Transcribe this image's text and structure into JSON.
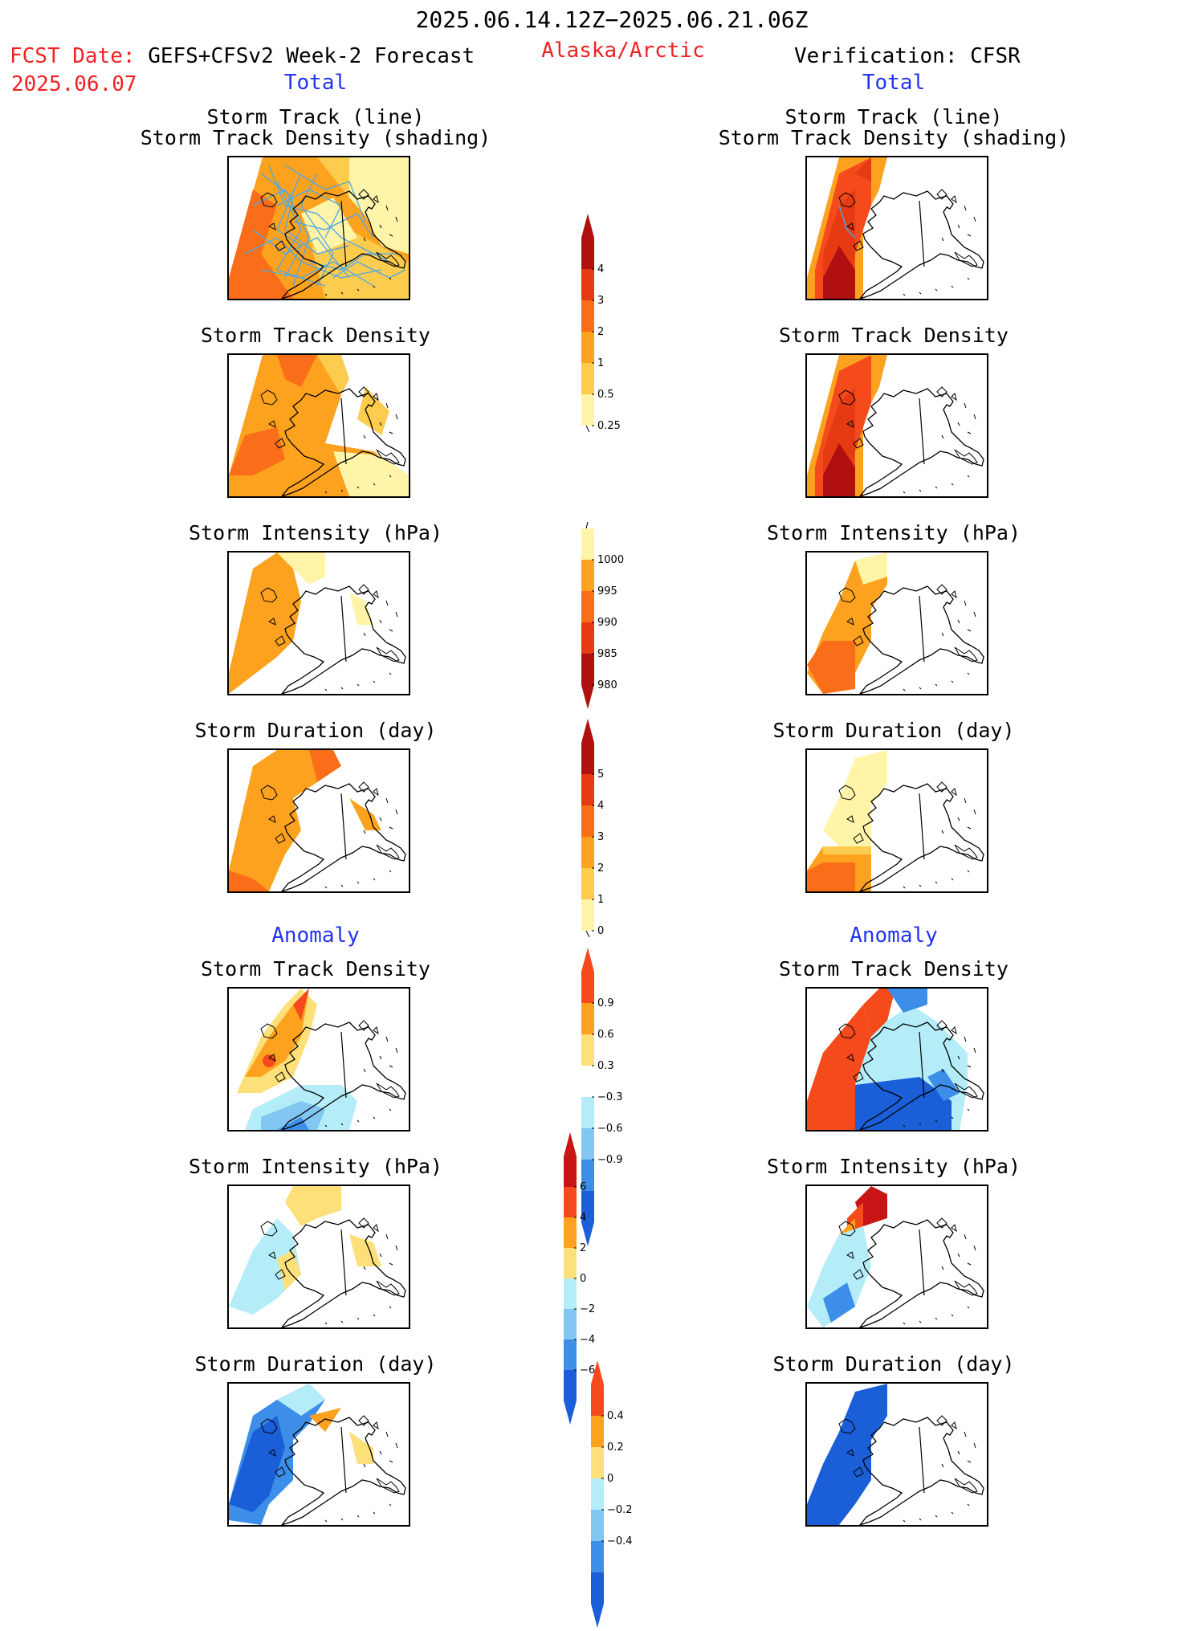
{
  "header": {
    "period": "2025.06.14.12Z−2025.06.21.06Z",
    "fcst_label": "FCST Date:",
    "fcst_model": "GEFS+CFSv2 Week-2 Forecast",
    "fcst_date": "2025.06.07",
    "region": "Alaska/Arctic",
    "verification": "Verification: CFSR"
  },
  "sections": {
    "total": "Total",
    "anomaly": "Anomaly"
  },
  "panel_titles": {
    "track_line": "Storm Track (line)",
    "track_shading": "Storm Track Density (shading)",
    "density": "Storm Track Density",
    "intensity": "Storm Intensity (hPa)",
    "duration": "Storm Duration (day)"
  },
  "colorbars": {
    "density_total": {
      "labels": [
        "4",
        "3",
        "2",
        "1",
        "0.5",
        "0.25"
      ],
      "colors": [
        "#b01010",
        "#e63a12",
        "#fa6e1a",
        "#fda21e",
        "#fccc4e",
        "#fff4a8"
      ]
    },
    "intensity_total": {
      "labels": [
        "1000",
        "995",
        "990",
        "985",
        "980"
      ],
      "colors": [
        "#fff4a8",
        "#fda21e",
        "#fa6e1a",
        "#e63a12",
        "#b01010"
      ]
    },
    "duration_total": {
      "labels": [
        "5",
        "4",
        "3",
        "2",
        "1",
        "0"
      ],
      "colors": [
        "#b01010",
        "#e63a12",
        "#fa6e1a",
        "#fda21e",
        "#fccc4e",
        "#fff4a8"
      ]
    },
    "density_anom": {
      "labels": [
        "0.9",
        "0.6",
        "0.3",
        "−0.3",
        "−0.6",
        "−0.9"
      ],
      "colors": [
        "#f44a1c",
        "#fda21e",
        "#fde07a",
        "#ffffff",
        "#b4ecf8",
        "#82c6f2",
        "#3c8ee8",
        "#1a5fd8"
      ]
    },
    "intensity_anom": {
      "labels": [
        "6",
        "4",
        "2",
        "0",
        "−2",
        "−4",
        "−6"
      ],
      "colors": [
        "#c81414",
        "#f44a1c",
        "#fda21e",
        "#fde07a",
        "#b4ecf8",
        "#82c6f2",
        "#3c8ee8",
        "#1a5fd8"
      ]
    },
    "duration_anom": {
      "labels": [
        "0.4",
        "0.2",
        "0",
        "−0.2",
        "−0.4"
      ],
      "colors": [
        "#f44a1c",
        "#fda21e",
        "#fde07a",
        "#b4ecf8",
        "#82c6f2",
        "#3c8ee8",
        "#1a5fd8"
      ]
    }
  },
  "colors": {
    "forecast_red": "#ee2222",
    "section_blue": "#2233ee",
    "track_lines": "#4aa8e8"
  }
}
